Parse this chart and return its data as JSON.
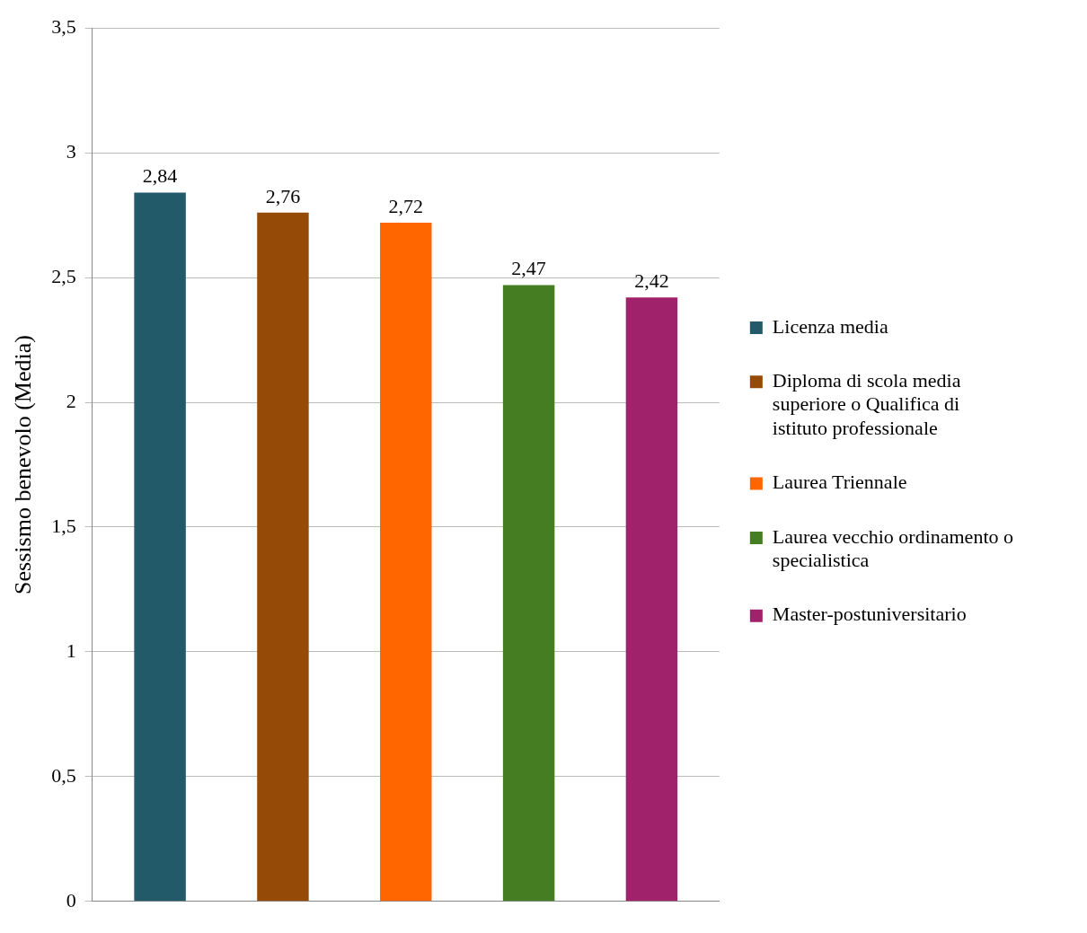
{
  "chart_data": {
    "type": "bar",
    "ylabel": "Sessismo benevolo (Media)",
    "categories": [
      null
    ],
    "series": [
      {
        "name": "Licenza media",
        "color": "#225a69",
        "values": [
          2.84
        ],
        "value_labels": [
          "2,84"
        ]
      },
      {
        "name": "Diploma di scola media superiore o Qualifica di istituto professionale",
        "color": "#964a08",
        "values": [
          2.76
        ],
        "value_labels": [
          "2,76"
        ]
      },
      {
        "name": "Laurea Triennale",
        "color": "#ff6600",
        "values": [
          2.72
        ],
        "value_labels": [
          "2,72"
        ]
      },
      {
        "name": "Laurea vecchio ordinamento o specialistica",
        "color": "#457e22",
        "values": [
          2.47
        ],
        "value_labels": [
          "2,47"
        ]
      },
      {
        "name": "Master-postuniversitario",
        "color": "#a0226b",
        "values": [
          2.42
        ],
        "value_labels": [
          "2,42"
        ]
      }
    ],
    "ylim": [
      0,
      3.5
    ],
    "yticks": [
      0,
      {
        "value": 0.5,
        "label": "0,5"
      },
      1,
      {
        "value": 1.5,
        "label": "1,5"
      },
      2,
      {
        "value": 2.5,
        "label": "2,5"
      },
      3,
      {
        "value": 3.5,
        "label": "3,5"
      }
    ],
    "grid": "y",
    "legend": "right"
  }
}
